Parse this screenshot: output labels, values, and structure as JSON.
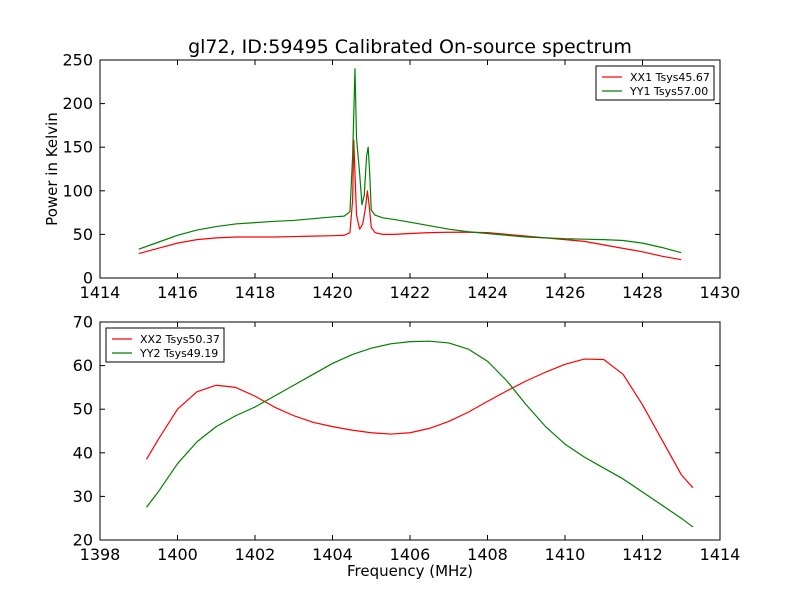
{
  "figure": {
    "title": "gl72, ID:59495 Calibrated On-source spectrum",
    "xlabel": "Frequency (MHz)"
  },
  "chart_data": [
    {
      "type": "line",
      "ylabel": "Power in Kelvin",
      "xlabel": "",
      "xlim": [
        1414,
        1430
      ],
      "ylim": [
        0,
        250
      ],
      "x_ticks": [
        1414,
        1416,
        1418,
        1420,
        1422,
        1424,
        1426,
        1428,
        1430
      ],
      "y_ticks": [
        0,
        50,
        100,
        150,
        200,
        250
      ],
      "legend": "top-right",
      "series": [
        {
          "name": "XX1 Tsys45.67",
          "color": "#ff0000",
          "x": [
            1415.0,
            1415.5,
            1416.0,
            1416.5,
            1417.0,
            1417.5,
            1418.0,
            1418.5,
            1419.0,
            1419.5,
            1420.0,
            1420.3,
            1420.45,
            1420.52,
            1420.55,
            1420.58,
            1420.62,
            1420.7,
            1420.78,
            1420.85,
            1420.9,
            1420.95,
            1421.0,
            1421.1,
            1421.3,
            1421.6,
            1422.0,
            1422.5,
            1423.0,
            1423.5,
            1424.0,
            1424.5,
            1425.0,
            1425.5,
            1426.0,
            1426.5,
            1427.0,
            1427.5,
            1428.0,
            1428.5,
            1429.0
          ],
          "y": [
            28,
            34,
            40,
            44,
            46,
            47,
            47,
            47,
            47.5,
            48,
            48.5,
            49,
            52,
            90,
            158,
            120,
            72,
            56,
            62,
            80,
            100,
            82,
            58,
            52,
            50,
            50,
            51,
            52,
            52.5,
            52.5,
            52,
            50,
            48,
            46,
            44,
            42,
            38,
            34,
            30,
            25,
            21
          ]
        },
        {
          "name": "YY1 Tsys57.00",
          "color": "#008000",
          "x": [
            1415.0,
            1415.5,
            1416.0,
            1416.5,
            1417.0,
            1417.5,
            1418.0,
            1418.5,
            1419.0,
            1419.5,
            1420.0,
            1420.3,
            1420.45,
            1420.52,
            1420.58,
            1420.62,
            1420.7,
            1420.76,
            1420.82,
            1420.88,
            1420.92,
            1420.96,
            1421.0,
            1421.1,
            1421.3,
            1421.6,
            1422.0,
            1422.5,
            1423.0,
            1423.5,
            1424.0,
            1424.5,
            1425.0,
            1425.5,
            1426.0,
            1426.5,
            1427.0,
            1427.5,
            1428.0,
            1428.5,
            1429.0
          ],
          "y": [
            33,
            41,
            49,
            55,
            59,
            62,
            63.5,
            65,
            66,
            68,
            70,
            71,
            76,
            140,
            240,
            160,
            120,
            84,
            95,
            140,
            150,
            120,
            78,
            72,
            69,
            67,
            64,
            60,
            56,
            53,
            51,
            49,
            47,
            46,
            45,
            44.5,
            44,
            43,
            40,
            35,
            29
          ]
        }
      ]
    },
    {
      "type": "line",
      "ylabel": "",
      "xlabel": "Frequency (MHz)",
      "xlim": [
        1398,
        1414
      ],
      "ylim": [
        20,
        70
      ],
      "x_ticks": [
        1398,
        1400,
        1402,
        1404,
        1406,
        1408,
        1410,
        1412,
        1414
      ],
      "y_ticks": [
        20,
        30,
        40,
        50,
        60,
        70
      ],
      "legend": "top-left",
      "series": [
        {
          "name": "XX2 Tsys50.37",
          "color": "#ff0000",
          "x": [
            1399.2,
            1399.5,
            1400.0,
            1400.5,
            1401.0,
            1401.5,
            1402.0,
            1402.5,
            1403.0,
            1403.5,
            1404.0,
            1404.5,
            1405.0,
            1405.5,
            1406.0,
            1406.5,
            1407.0,
            1407.5,
            1408.0,
            1408.5,
            1409.0,
            1409.5,
            1410.0,
            1410.5,
            1411.0,
            1411.5,
            1412.0,
            1412.5,
            1413.0,
            1413.3
          ],
          "y": [
            38.5,
            43,
            50,
            54,
            55.5,
            55,
            53,
            50.5,
            48.5,
            47,
            46,
            45.2,
            44.6,
            44.3,
            44.6,
            45.6,
            47.2,
            49.3,
            51.8,
            54.2,
            56.5,
            58.5,
            60.3,
            61.5,
            61.4,
            58,
            51,
            43,
            35,
            32
          ]
        },
        {
          "name": "YY2 Tsys49.19",
          "color": "#008000",
          "x": [
            1399.2,
            1399.5,
            1400.0,
            1400.5,
            1401.0,
            1401.5,
            1402.0,
            1402.5,
            1403.0,
            1403.5,
            1404.0,
            1404.5,
            1405.0,
            1405.5,
            1406.0,
            1406.5,
            1407.0,
            1407.5,
            1408.0,
            1408.5,
            1409.0,
            1409.5,
            1410.0,
            1410.5,
            1411.0,
            1411.5,
            1412.0,
            1412.5,
            1413.0,
            1413.3
          ],
          "y": [
            27.5,
            31,
            37.5,
            42.5,
            46,
            48.5,
            50.5,
            53,
            55.5,
            58,
            60.5,
            62.5,
            64,
            65,
            65.5,
            65.6,
            65.2,
            63.8,
            61,
            56.5,
            51,
            46,
            42,
            39,
            36.5,
            34,
            31,
            28,
            25,
            23
          ]
        }
      ]
    }
  ]
}
